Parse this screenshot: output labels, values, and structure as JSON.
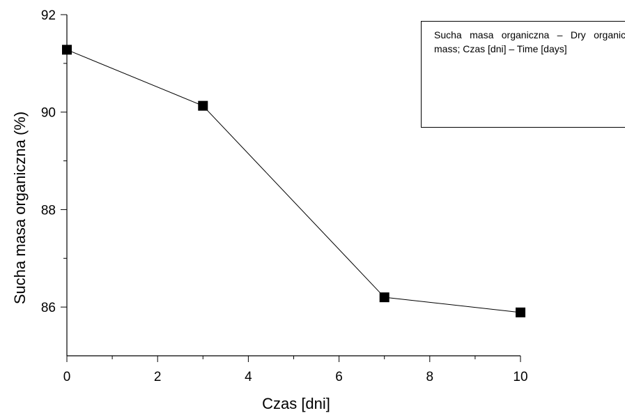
{
  "chart_data": {
    "type": "line",
    "xlabel": "Czas [dni]",
    "ylabel": "Sucha masa organiczna (%)",
    "xlim": [
      0,
      10
    ],
    "ylim": [
      85,
      92
    ],
    "x_ticks": [
      0,
      2,
      4,
      6,
      8,
      10
    ],
    "y_ticks": [
      86,
      88,
      90,
      92
    ],
    "grid": false,
    "series": [
      {
        "x": [
          0,
          3,
          7,
          10
        ],
        "y": [
          91.28,
          90.13,
          86.2,
          85.89
        ],
        "marker": "square",
        "color": "#000000"
      }
    ],
    "annotation": "Sucha masa organiczna – Dry organic mass; Czas [dni] – Time [days]"
  }
}
